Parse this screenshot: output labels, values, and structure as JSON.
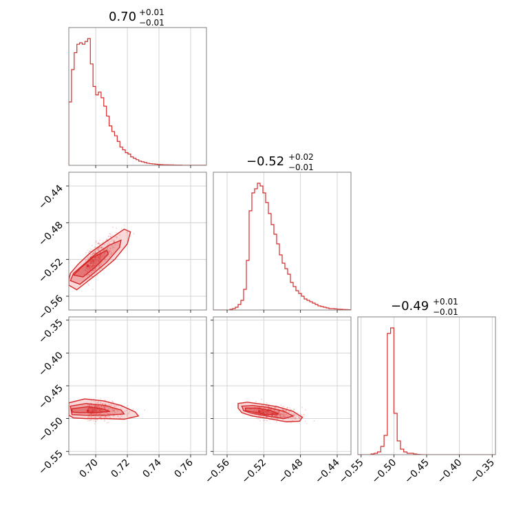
{
  "accent_color": "#d62728",
  "chart_data": [
    {
      "type": "histogram",
      "panel": "p1-marginal",
      "title": {
        "value": "0.70",
        "plus": "+0.01",
        "minus": "−0.01"
      },
      "x_range": [
        0.683,
        0.77
      ],
      "x_ticks": [
        "0.70",
        "0.72",
        "0.74",
        "0.76"
      ],
      "x_tick_values": [
        0.7,
        0.72,
        0.74,
        0.76
      ],
      "bin_edges_start": 0.683,
      "bin_width": 0.0017,
      "counts": [
        0.45,
        0.68,
        0.8,
        0.86,
        0.87,
        0.86,
        0.88,
        0.9,
        0.72,
        0.56,
        0.5,
        0.52,
        0.48,
        0.42,
        0.35,
        0.28,
        0.24,
        0.21,
        0.17,
        0.13,
        0.11,
        0.09,
        0.08,
        0.06,
        0.05,
        0.04,
        0.03,
        0.025,
        0.02,
        0.015,
        0.012,
        0.01,
        0.008,
        0.006,
        0.005,
        0.004,
        0.004,
        0.003,
        0.003,
        0.002,
        0.002,
        0.002,
        0.001,
        0.001,
        0.001,
        0.001,
        0.001,
        0.001,
        0.001,
        0.001,
        0.001
      ],
      "grid": true
    },
    {
      "type": "scatter",
      "panel": "p2-vs-p1",
      "x_range": [
        0.683,
        0.77
      ],
      "y_range": [
        -0.575,
        -0.425
      ],
      "x_ticks": [
        "0.70",
        "0.72",
        "0.74",
        "0.76"
      ],
      "x_tick_values": [
        0.7,
        0.72,
        0.74,
        0.76
      ],
      "y_ticks": [
        "−0.44",
        "−0.48",
        "−0.52",
        "−0.56"
      ],
      "y_tick_values": [
        -0.44,
        -0.48,
        -0.52,
        -0.56
      ],
      "center": [
        0.695,
        -0.527
      ],
      "correlation": "positive",
      "contours": [
        [
          [
            0.683,
            -0.548
          ],
          [
            0.688,
            -0.553
          ],
          [
            0.694,
            -0.545
          ],
          [
            0.703,
            -0.533
          ],
          [
            0.712,
            -0.52
          ],
          [
            0.72,
            -0.503
          ],
          [
            0.722,
            -0.49
          ],
          [
            0.718,
            -0.487
          ],
          [
            0.707,
            -0.5
          ],
          [
            0.697,
            -0.512
          ],
          [
            0.689,
            -0.525
          ],
          [
            0.684,
            -0.535
          ],
          [
            0.683,
            -0.542
          ]
        ],
        [
          [
            0.684,
            -0.543
          ],
          [
            0.69,
            -0.547
          ],
          [
            0.698,
            -0.536
          ],
          [
            0.707,
            -0.523
          ],
          [
            0.715,
            -0.507
          ],
          [
            0.716,
            -0.499
          ],
          [
            0.709,
            -0.504
          ],
          [
            0.7,
            -0.514
          ],
          [
            0.692,
            -0.526
          ],
          [
            0.686,
            -0.535
          ]
        ],
        [
          [
            0.686,
            -0.537
          ],
          [
            0.692,
            -0.539
          ],
          [
            0.7,
            -0.528
          ],
          [
            0.708,
            -0.514
          ],
          [
            0.707,
            -0.51
          ],
          [
            0.698,
            -0.518
          ],
          [
            0.69,
            -0.53
          ]
        ]
      ],
      "grid": true
    },
    {
      "type": "histogram",
      "panel": "p2-marginal",
      "title": {
        "value": "−0.52",
        "plus": "+0.02",
        "minus": "−0.01"
      },
      "x_range": [
        -0.575,
        -0.425
      ],
      "x_ticks": [
        "−0.56",
        "−0.52",
        "−0.48",
        "−0.44"
      ],
      "x_tick_values": [
        -0.56,
        -0.52,
        -0.48,
        -0.44
      ],
      "bin_edges_start": -0.575,
      "bin_width": 0.003,
      "counts": [
        0.0,
        0.0,
        0.0,
        0.0,
        0.0,
        0.0,
        0.005,
        0.01,
        0.02,
        0.04,
        0.07,
        0.15,
        0.36,
        0.72,
        0.85,
        0.88,
        0.92,
        0.9,
        0.85,
        0.78,
        0.7,
        0.62,
        0.55,
        0.48,
        0.4,
        0.34,
        0.3,
        0.26,
        0.2,
        0.17,
        0.14,
        0.12,
        0.1,
        0.08,
        0.07,
        0.06,
        0.05,
        0.04,
        0.03,
        0.025,
        0.02,
        0.015,
        0.01,
        0.01,
        0.008,
        0.006,
        0.005,
        0.004,
        0.003,
        0.002
      ],
      "grid": true
    },
    {
      "type": "scatter",
      "panel": "p3-vs-p1",
      "x_range": [
        0.683,
        0.77
      ],
      "y_range": [
        -0.555,
        -0.345
      ],
      "x_ticks": [
        "0.70",
        "0.72",
        "0.74",
        "0.76"
      ],
      "x_tick_values": [
        0.7,
        0.72,
        0.74,
        0.76
      ],
      "y_ticks": [
        "−0.35",
        "−0.40",
        "−0.45",
        "−0.50",
        "−0.55"
      ],
      "y_tick_values": [
        -0.35,
        -0.4,
        -0.45,
        -0.5,
        -0.55
      ],
      "center": [
        0.695,
        -0.488
      ],
      "correlation": "none",
      "contours": [
        [
          [
            0.683,
            -0.476
          ],
          [
            0.693,
            -0.47
          ],
          [
            0.705,
            -0.473
          ],
          [
            0.716,
            -0.48
          ],
          [
            0.725,
            -0.49
          ],
          [
            0.727,
            -0.496
          ],
          [
            0.718,
            -0.501
          ],
          [
            0.706,
            -0.5
          ],
          [
            0.694,
            -0.5
          ],
          [
            0.686,
            -0.499
          ],
          [
            0.683,
            -0.495
          ]
        ],
        [
          [
            0.684,
            -0.481
          ],
          [
            0.694,
            -0.477
          ],
          [
            0.706,
            -0.48
          ],
          [
            0.716,
            -0.487
          ],
          [
            0.718,
            -0.493
          ],
          [
            0.706,
            -0.495
          ],
          [
            0.694,
            -0.495
          ],
          [
            0.685,
            -0.494
          ]
        ],
        [
          [
            0.685,
            -0.485
          ],
          [
            0.695,
            -0.482
          ],
          [
            0.704,
            -0.485
          ],
          [
            0.709,
            -0.489
          ],
          [
            0.7,
            -0.491
          ],
          [
            0.69,
            -0.491
          ],
          [
            0.685,
            -0.49
          ]
        ]
      ],
      "grid": true
    },
    {
      "type": "scatter",
      "panel": "p3-vs-p2",
      "x_range": [
        -0.575,
        -0.425
      ],
      "y_range": [
        -0.555,
        -0.345
      ],
      "x_ticks": [
        "−0.56",
        "−0.52",
        "−0.48",
        "−0.44"
      ],
      "x_tick_values": [
        -0.56,
        -0.52,
        -0.48,
        -0.44
      ],
      "y_ticks": [
        "−0.35",
        "−0.40",
        "−0.45",
        "−0.50",
        "−0.55"
      ],
      "y_tick_values": [
        -0.35,
        -0.4,
        -0.45,
        -0.5,
        -0.55
      ],
      "center": [
        -0.525,
        -0.489
      ],
      "correlation": "negative",
      "contours": [
        [
          [
            -0.548,
            -0.477
          ],
          [
            -0.538,
            -0.475
          ],
          [
            -0.522,
            -0.478
          ],
          [
            -0.505,
            -0.482
          ],
          [
            -0.488,
            -0.489
          ],
          [
            -0.478,
            -0.498
          ],
          [
            -0.481,
            -0.504
          ],
          [
            -0.495,
            -0.505
          ],
          [
            -0.515,
            -0.5
          ],
          [
            -0.533,
            -0.496
          ],
          [
            -0.544,
            -0.491
          ],
          [
            -0.548,
            -0.484
          ]
        ],
        [
          [
            -0.544,
            -0.481
          ],
          [
            -0.532,
            -0.48
          ],
          [
            -0.515,
            -0.483
          ],
          [
            -0.498,
            -0.489
          ],
          [
            -0.488,
            -0.496
          ],
          [
            -0.498,
            -0.5
          ],
          [
            -0.517,
            -0.496
          ],
          [
            -0.533,
            -0.492
          ],
          [
            -0.542,
            -0.488
          ]
        ],
        [
          [
            -0.54,
            -0.484
          ],
          [
            -0.527,
            -0.484
          ],
          [
            -0.512,
            -0.488
          ],
          [
            -0.504,
            -0.493
          ],
          [
            -0.517,
            -0.494
          ],
          [
            -0.532,
            -0.49
          ],
          [
            -0.54,
            -0.488
          ]
        ]
      ],
      "grid": true
    },
    {
      "type": "histogram",
      "panel": "p3-marginal",
      "title": {
        "value": "−0.49",
        "plus": "+0.01",
        "minus": "−0.01"
      },
      "x_range": [
        -0.555,
        -0.345
      ],
      "x_ticks": [
        "−0.55",
        "−0.50",
        "−0.45",
        "−0.40",
        "−0.35"
      ],
      "x_tick_values": [
        -0.55,
        -0.5,
        -0.45,
        -0.4,
        -0.35
      ],
      "bin_edges_start": -0.555,
      "bin_width": 0.005,
      "counts": [
        0.0,
        0.0,
        0.0,
        0.0,
        0.005,
        0.01,
        0.02,
        0.06,
        0.14,
        0.88,
        0.92,
        0.3,
        0.1,
        0.04,
        0.02,
        0.01,
        0.01,
        0.005,
        0.002,
        0.001,
        0.0,
        0.0,
        0.0,
        0.0,
        0.0,
        0.0,
        0.0,
        0.0,
        0.0,
        0.0,
        0.0,
        0.0,
        0.0,
        0.0,
        0.0,
        0.0,
        0.0,
        0.0,
        0.0,
        0.0,
        0.0,
        0.0
      ],
      "grid": true
    }
  ]
}
